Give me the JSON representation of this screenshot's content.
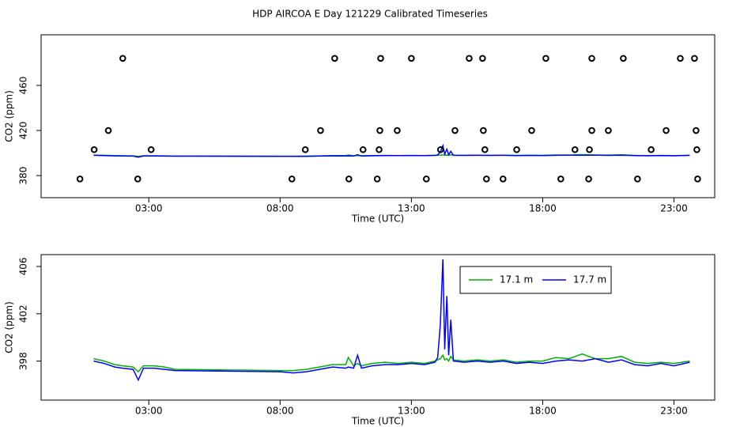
{
  "title": "HDP AIRCOA E  Day 121229  Calibrated Timeseries",
  "chart_data": [
    {
      "type": "scatter",
      "x_label": "Time (UTC)",
      "y_label": "CO2 (ppm)",
      "xlim": [
        -1.1,
        24.55
      ],
      "ylim": [
        360.4,
        504.9
      ],
      "xticks": [
        {
          "value": 3,
          "label": "03:00"
        },
        {
          "value": 8,
          "label": "08:00"
        },
        {
          "value": 13,
          "label": "13:00"
        },
        {
          "value": 18,
          "label": "18:00"
        },
        {
          "value": 23,
          "label": "23:00"
        }
      ],
      "yticks": [
        380,
        420,
        460
      ],
      "series": [
        {
          "color": "#000000",
          "x": [
            2.01,
            10.08,
            11.83,
            13.0,
            15.2,
            15.71,
            18.12,
            19.87,
            21.07,
            23.24,
            23.78,
            1.46,
            9.54,
            11.8,
            12.46,
            14.66,
            15.74,
            17.58,
            19.87,
            20.5,
            22.7,
            23.84,
            0.92,
            3.09,
            8.96,
            11.16,
            11.77,
            14.11,
            15.8,
            17.01,
            19.23,
            19.78,
            22.13,
            23.87,
            0.38,
            2.58,
            8.45,
            10.62,
            11.7,
            13.57,
            15.86,
            16.49,
            18.69,
            19.75,
            21.61,
            23.9
          ],
          "values": [
            484,
            484,
            484,
            484,
            484,
            484,
            484,
            484,
            484,
            484,
            484,
            420,
            420,
            420,
            420,
            420,
            420,
            420,
            420,
            420,
            420,
            420,
            403,
            403,
            403,
            403,
            403,
            403,
            403,
            403,
            403,
            403,
            403,
            403,
            377,
            377,
            377,
            377,
            377,
            377,
            377,
            377,
            377,
            377,
            377,
            377
          ]
        }
      ]
    },
    {
      "type": "line",
      "x_label": "Time (UTC)",
      "y_label": "CO2 (ppm)",
      "xlim": [
        -1.1,
        24.55
      ],
      "ylim": [
        394.7,
        407
      ],
      "xticks": [
        {
          "value": 3,
          "label": "03:00"
        },
        {
          "value": 8,
          "label": "08:00"
        },
        {
          "value": 13,
          "label": "13:00"
        },
        {
          "value": 18,
          "label": "18:00"
        },
        {
          "value": 23,
          "label": "23:00"
        }
      ],
      "yticks": [
        398,
        402,
        406
      ],
      "series": [
        {
          "name": "17.1 m",
          "color": "#00b000",
          "x": [
            0.9,
            1.3,
            1.7,
            2.0,
            2.4,
            2.6,
            2.8,
            3.2,
            3.6,
            4.0,
            8.0,
            8.5,
            9.0,
            9.5,
            10.0,
            10.5,
            10.6,
            10.8,
            10.95,
            11.1,
            11.5,
            12.0,
            12.5,
            13.0,
            13.5,
            13.9,
            14.0,
            14.1,
            14.2,
            14.27,
            14.35,
            14.42,
            14.5,
            14.6,
            15.0,
            15.5,
            16.0,
            16.5,
            17.0,
            17.5,
            18.0,
            18.5,
            19.0,
            19.5,
            20.0,
            20.5,
            21.0,
            21.5,
            22.0,
            22.5,
            23.0,
            23.6
          ],
          "values": [
            398.2,
            398.0,
            397.7,
            397.6,
            397.5,
            397.1,
            397.6,
            397.6,
            397.5,
            397.3,
            397.2,
            397.2,
            397.3,
            397.5,
            397.7,
            397.7,
            398.3,
            397.6,
            397.8,
            397.6,
            397.8,
            397.9,
            397.8,
            397.9,
            397.8,
            398.0,
            398.1,
            398.2,
            398.5,
            398.1,
            398.2,
            398.0,
            398.4,
            398.1,
            398.0,
            398.1,
            398.0,
            398.1,
            397.9,
            398.0,
            398.0,
            398.3,
            398.2,
            398.6,
            398.2,
            398.2,
            398.4,
            397.9,
            397.8,
            397.9,
            397.8,
            398.0
          ]
        },
        {
          "name": "17.7 m",
          "color": "#0000ff",
          "x": [
            0.9,
            1.3,
            1.7,
            2.0,
            2.4,
            2.6,
            2.8,
            3.2,
            3.6,
            4.0,
            8.0,
            8.5,
            9.0,
            9.5,
            10.0,
            10.5,
            10.6,
            10.8,
            10.95,
            11.1,
            11.5,
            12.0,
            12.5,
            13.0,
            13.5,
            13.9,
            14.0,
            14.1,
            14.2,
            14.27,
            14.35,
            14.42,
            14.5,
            14.6,
            15.0,
            15.5,
            16.0,
            16.5,
            17.0,
            17.5,
            18.0,
            18.5,
            19.0,
            19.5,
            20.0,
            20.5,
            21.0,
            21.5,
            22.0,
            22.5,
            23.0,
            23.6
          ],
          "values": [
            398.0,
            397.8,
            397.5,
            397.4,
            397.3,
            396.4,
            397.4,
            397.4,
            397.3,
            397.2,
            397.1,
            397.0,
            397.1,
            397.3,
            397.5,
            397.4,
            397.5,
            397.4,
            398.5,
            397.4,
            397.6,
            397.7,
            397.7,
            397.8,
            397.7,
            397.9,
            398.3,
            401.0,
            406.6,
            399.0,
            403.5,
            398.5,
            401.5,
            398.0,
            397.9,
            398.0,
            397.9,
            398.0,
            397.8,
            397.9,
            397.8,
            398.0,
            398.1,
            398.0,
            398.2,
            397.9,
            398.1,
            397.7,
            397.6,
            397.8,
            397.6,
            397.9
          ]
        }
      ]
    }
  ]
}
